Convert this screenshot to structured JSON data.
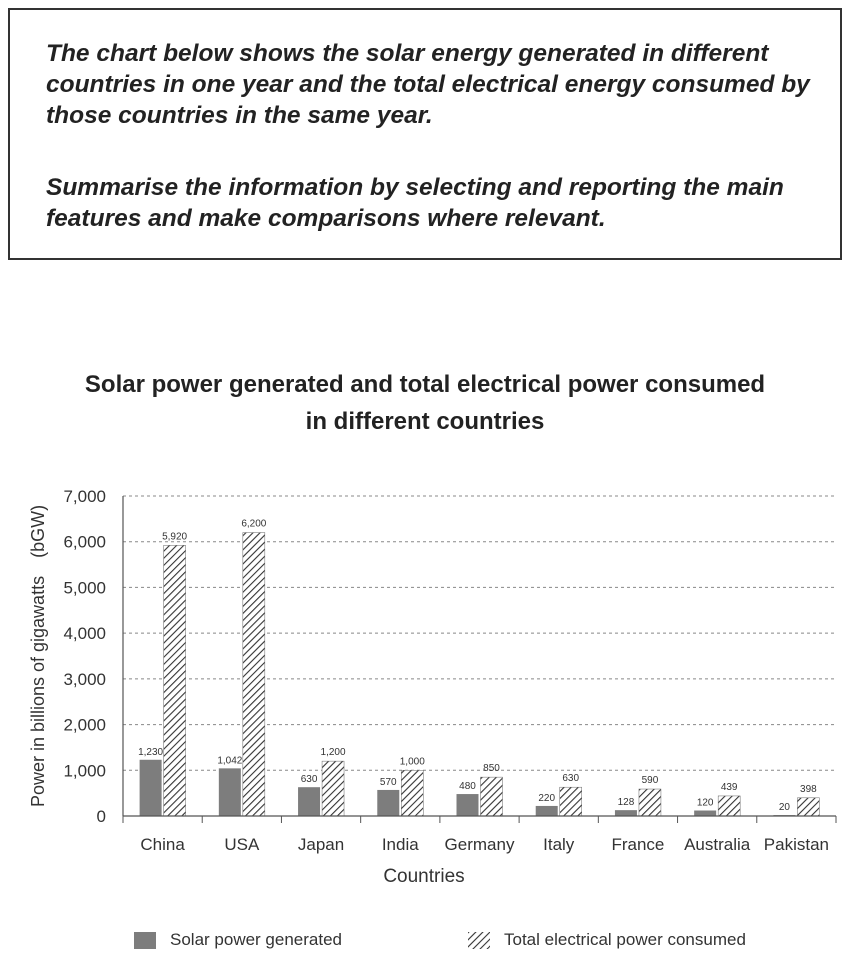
{
  "prompt": {
    "paragraph1": "The chart below shows the solar energy generated in different countries in one year and the total electrical energy consumed by those countries in the same year.",
    "paragraph2": "Summarise the information by selecting and reporting the main features and make comparisons where relevant."
  },
  "colors": {
    "solar": "#7d7d7d",
    "hatch": "#333333",
    "grid": "#888888",
    "axis": "#555555",
    "text": "#333333"
  },
  "chart_data": {
    "type": "bar",
    "title_line1": "Solar power generated and total electrical power consumed",
    "title_line2": "in different countries",
    "xlabel": "Countries",
    "ylabel": "Power in billions of gigawatts　(bGW)",
    "ylim": [
      0,
      7000
    ],
    "yticks": [
      0,
      1000,
      2000,
      3000,
      4000,
      5000,
      6000,
      7000
    ],
    "ytick_labels": [
      "0",
      "1,000",
      "2,000",
      "3,000",
      "4,000",
      "5,000",
      "6,000",
      "7,000"
    ],
    "grid": true,
    "legend_position": "bottom",
    "categories": [
      "China",
      "USA",
      "Japan",
      "India",
      "Germany",
      "Italy",
      "France",
      "Australia",
      "Pakistan"
    ],
    "series": [
      {
        "name": "Solar power generated",
        "values": [
          1230,
          1042,
          630,
          570,
          480,
          220,
          128,
          120,
          20
        ],
        "labels": [
          "1,230",
          "1,042",
          "630",
          "570",
          "480",
          "220",
          "128",
          "120",
          "20"
        ]
      },
      {
        "name": "Total electrical power consumed",
        "values": [
          5920,
          6200,
          1200,
          1000,
          850,
          630,
          590,
          439,
          398
        ],
        "labels": [
          "5,920",
          "6,200",
          "1,200",
          "1,000",
          "850",
          "630",
          "590",
          "439",
          "398"
        ]
      }
    ]
  }
}
